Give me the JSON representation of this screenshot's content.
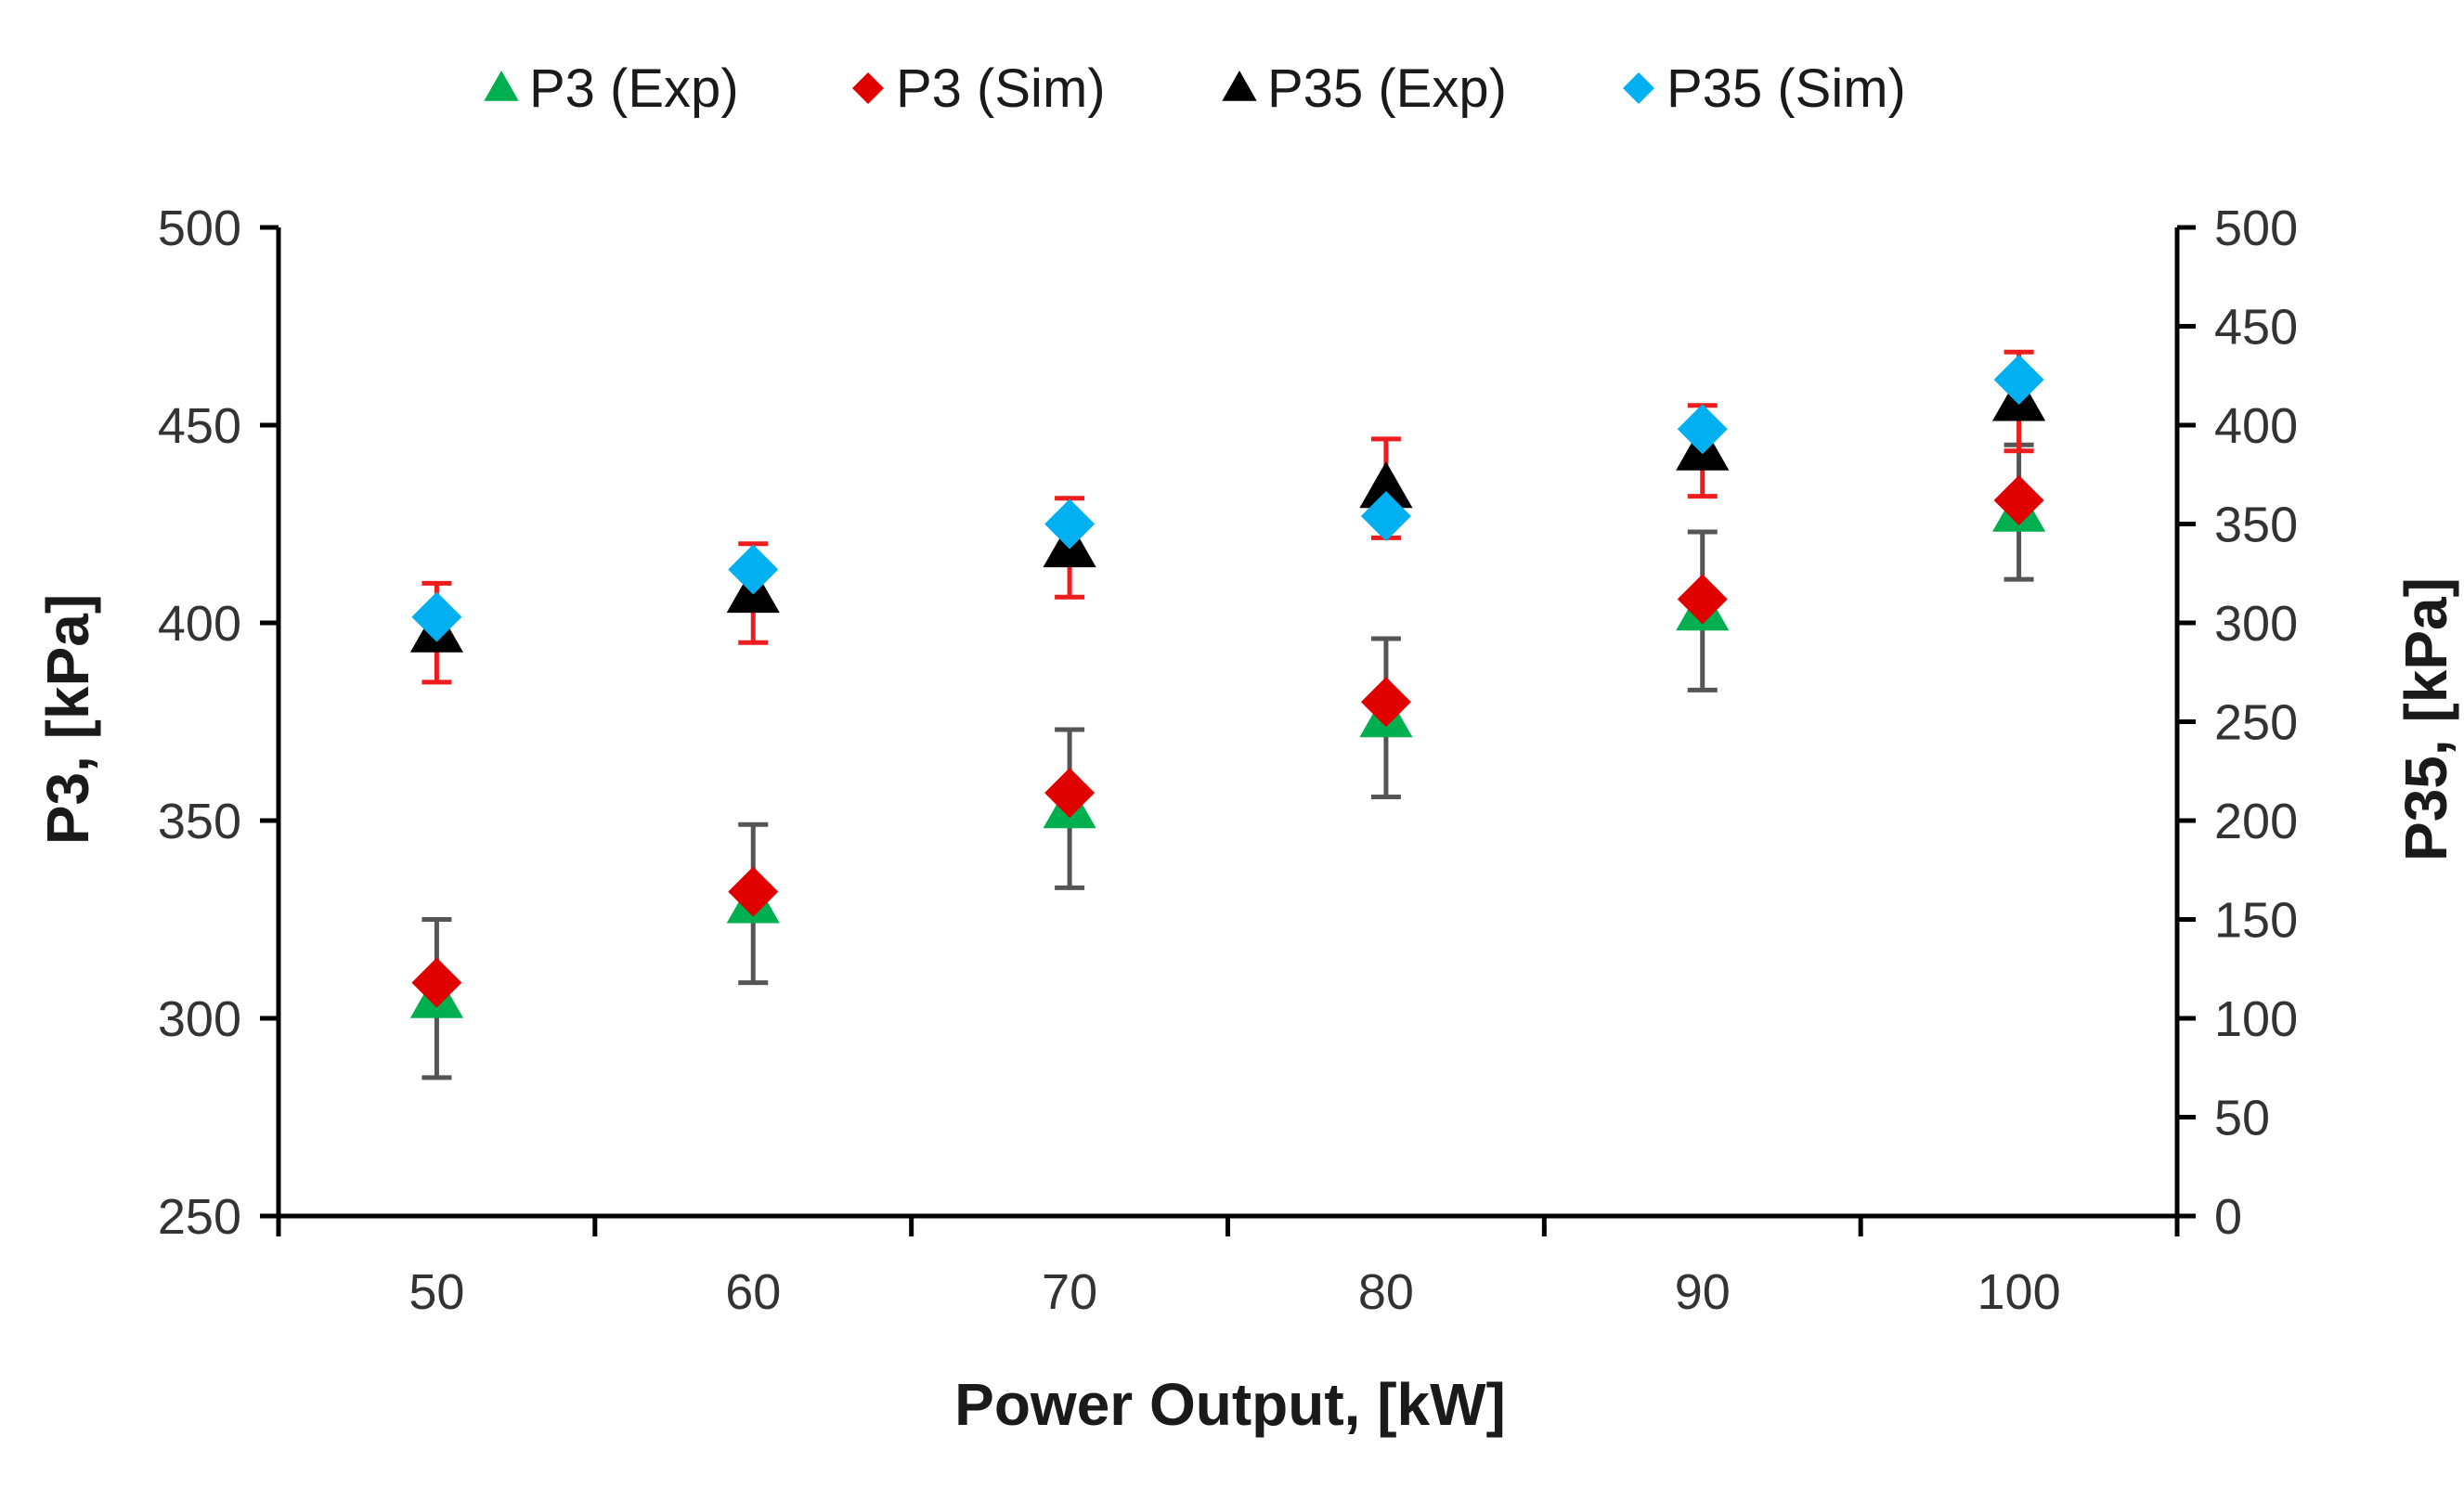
{
  "chart_data": {
    "type": "scatter",
    "x": [
      50,
      60,
      70,
      80,
      90,
      100
    ],
    "xlim": [
      45,
      105
    ],
    "xticks": [
      50,
      60,
      70,
      80,
      90,
      100
    ],
    "xlabel": "Power Output, [kW]",
    "ylabel_left": "P3, [kPa]",
    "ylabel_right": "P35, [kPa]",
    "ylim_left": [
      250,
      500
    ],
    "yticks_left": [
      250,
      300,
      350,
      400,
      450,
      500
    ],
    "ylim_right": [
      0,
      500
    ],
    "yticks_right": [
      0,
      50,
      100,
      150,
      200,
      250,
      300,
      350,
      400,
      450,
      500
    ],
    "legend_position": "top",
    "grid": false,
    "series": [
      {
        "name": "P3 (Exp)",
        "axis": "left",
        "marker": "triangle",
        "color": "#00b050",
        "values": [
          305,
          329,
          353,
          376,
          403,
          428
        ],
        "error": [
          20,
          20,
          20,
          20,
          20,
          17
        ]
      },
      {
        "name": "P3 (Sim)",
        "axis": "left",
        "marker": "diamond",
        "color": "#e00000",
        "values": [
          309,
          332,
          357,
          380,
          406,
          431
        ]
      },
      {
        "name": "P35 (Exp)",
        "axis": "right",
        "marker": "triangle",
        "color": "#000000",
        "values": [
          295,
          315,
          338,
          368,
          387,
          412
        ],
        "error": [
          25,
          25,
          25,
          25,
          23,
          25
        ]
      },
      {
        "name": "P35 (Sim)",
        "axis": "right",
        "marker": "diamond",
        "color": "#00b0f0",
        "values": [
          303,
          327,
          350,
          354,
          398,
          423
        ]
      }
    ],
    "error_bar_colors": {
      "P3 (Exp)": "#555555",
      "P35 (Exp)": "#ee1c1c"
    },
    "legend": [
      "P3 (Exp)",
      "P3 (Sim)",
      "P35 (Exp)",
      "P35 (Sim)"
    ]
  }
}
